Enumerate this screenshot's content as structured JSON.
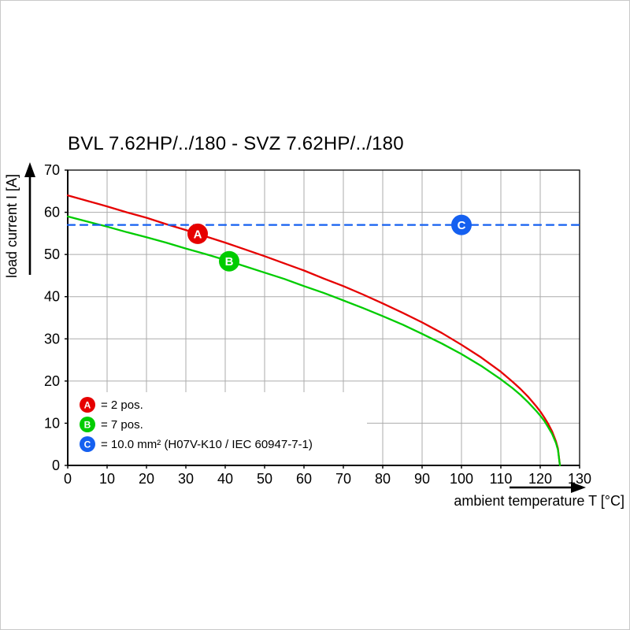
{
  "page": {
    "background": "#ffffff"
  },
  "chart_data": {
    "type": "line",
    "title": "BVL 7.62HP/../180 - SVZ 7.62HP/../180",
    "xlabel": "ambient temperature T [°C]",
    "ylabel": "load current I [A]",
    "xlim": [
      0,
      130
    ],
    "ylim": [
      0,
      70
    ],
    "xtick_step": 10,
    "ytick_step": 10,
    "grid": true,
    "x_tick_labels": [
      "0",
      "10",
      "20",
      "30",
      "40",
      "50",
      "60",
      "70",
      "80",
      "90",
      "100",
      "110",
      "120",
      "130"
    ],
    "y_tick_labels": [
      "0",
      "10",
      "20",
      "30",
      "40",
      "50",
      "60",
      "70"
    ],
    "series": [
      {
        "name": "A",
        "label": "2 pos.",
        "color": "#e60000",
        "style": "solid",
        "points": [
          [
            0,
            64
          ],
          [
            5,
            62.7
          ],
          [
            10,
            61.4
          ],
          [
            15,
            60.0
          ],
          [
            20,
            58.7
          ],
          [
            25,
            57.2
          ],
          [
            30,
            55.8
          ],
          [
            35,
            54.3
          ],
          [
            40,
            52.8
          ],
          [
            45,
            51.2
          ],
          [
            50,
            49.6
          ],
          [
            55,
            47.9
          ],
          [
            60,
            46.2
          ],
          [
            65,
            44.3
          ],
          [
            70,
            42.5
          ],
          [
            75,
            40.5
          ],
          [
            80,
            38.4
          ],
          [
            85,
            36.2
          ],
          [
            90,
            33.9
          ],
          [
            95,
            31.4
          ],
          [
            100,
            28.6
          ],
          [
            105,
            25.6
          ],
          [
            110,
            22.2
          ],
          [
            113,
            19.8
          ],
          [
            115,
            18.1
          ],
          [
            117,
            16.2
          ],
          [
            119,
            14.0
          ],
          [
            120,
            12.8
          ],
          [
            121,
            11.4
          ],
          [
            122,
            9.9
          ],
          [
            123,
            8.1
          ],
          [
            124,
            5.7
          ],
          [
            124.5,
            4.0
          ],
          [
            125,
            0
          ]
        ]
      },
      {
        "name": "B",
        "label": "7 pos.",
        "color": "#00cc00",
        "style": "solid",
        "points": [
          [
            0,
            59
          ],
          [
            5,
            57.8
          ],
          [
            10,
            56.6
          ],
          [
            15,
            55.3
          ],
          [
            20,
            54.1
          ],
          [
            25,
            52.8
          ],
          [
            30,
            51.4
          ],
          [
            35,
            50.1
          ],
          [
            40,
            48.7
          ],
          [
            45,
            47.2
          ],
          [
            50,
            45.7
          ],
          [
            55,
            44.2
          ],
          [
            60,
            42.5
          ],
          [
            65,
            40.9
          ],
          [
            70,
            39.1
          ],
          [
            75,
            37.3
          ],
          [
            80,
            35.4
          ],
          [
            85,
            33.4
          ],
          [
            90,
            31.2
          ],
          [
            95,
            28.9
          ],
          [
            100,
            26.4
          ],
          [
            105,
            23.6
          ],
          [
            110,
            20.4
          ],
          [
            113,
            18.3
          ],
          [
            115,
            16.7
          ],
          [
            117,
            14.9
          ],
          [
            119,
            12.9
          ],
          [
            120,
            11.8
          ],
          [
            121,
            10.6
          ],
          [
            122,
            9.1
          ],
          [
            123,
            7.5
          ],
          [
            124,
            5.3
          ],
          [
            124.5,
            3.7
          ],
          [
            125,
            0
          ]
        ]
      },
      {
        "name": "C",
        "label": "10.0 mm² (H07V-K10 / IEC 60947-7-1)",
        "color": "#1560f0",
        "style": "dashed",
        "points": [
          [
            0,
            57
          ],
          [
            130,
            57
          ]
        ]
      }
    ],
    "markers": [
      {
        "letter": "A",
        "x": 33,
        "y": 54.9
      },
      {
        "letter": "B",
        "x": 41,
        "y": 48.4
      },
      {
        "letter": "C",
        "x": 100,
        "y": 57
      }
    ],
    "legend": {
      "position": "bottom-left",
      "items": [
        {
          "letter": "A",
          "text": "= 2 pos."
        },
        {
          "letter": "B",
          "text": "= 7 pos."
        },
        {
          "letter": "C",
          "text": "= 10.0 mm² (H07V-K10 / IEC 60947-7-1)"
        }
      ]
    }
  }
}
